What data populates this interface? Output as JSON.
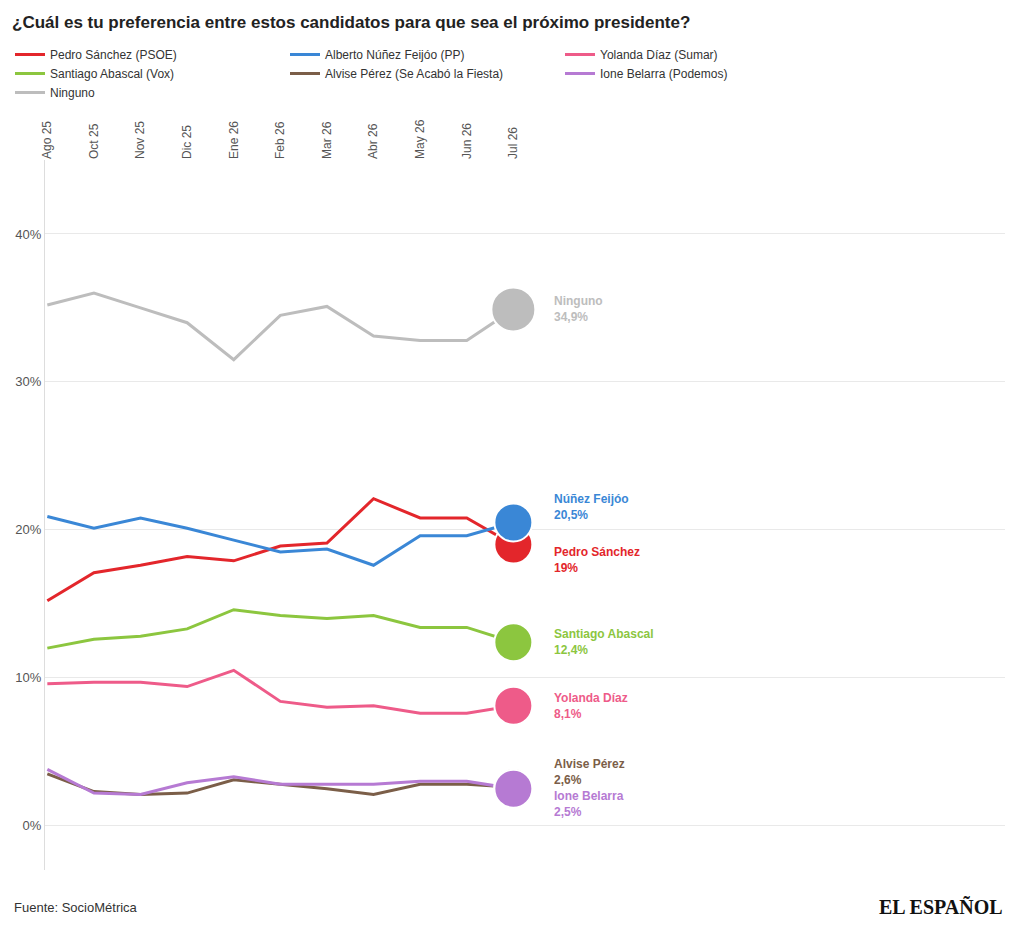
{
  "chart_data": {
    "type": "line",
    "title": "¿Cuál es tu preferencia entre estos candidatos para que sea el próximo presidente?",
    "categories": [
      "Ago 25",
      "Oct 25",
      "Nov 25",
      "Dic 25",
      "Ene 26",
      "Feb 26",
      "Mar 26",
      "Abr 26",
      "May 26",
      "Jun 26",
      "Jul 26"
    ],
    "series": [
      {
        "name": "Pedro Sánchez (PSOE)",
        "color": "#e3262b",
        "end_label": "Pedro Sánchez",
        "values": [
          15.2,
          17.1,
          17.6,
          18.2,
          17.9,
          18.9,
          19.1,
          22.1,
          20.8,
          20.8,
          19.0
        ],
        "value_labels": [
          null,
          null,
          null,
          null,
          null,
          null,
          null,
          null,
          null,
          null,
          "19%"
        ]
      },
      {
        "name": "Alberto Núñez Feijóo (PP)",
        "color": "#3a87d6",
        "end_label": "Núñez Feijóo",
        "values": [
          20.9,
          20.1,
          20.8,
          20.1,
          19.3,
          18.5,
          18.7,
          17.6,
          19.6,
          19.6,
          20.5
        ],
        "value_labels": [
          null,
          null,
          null,
          null,
          null,
          null,
          null,
          null,
          null,
          null,
          "20,5%"
        ]
      },
      {
        "name": "Yolanda Díaz (Sumar)",
        "color": "#ee5b89",
        "end_label": "Yolanda Díaz",
        "values": [
          9.6,
          9.7,
          9.7,
          9.4,
          10.5,
          8.4,
          8.0,
          8.1,
          7.6,
          7.6,
          8.1
        ],
        "value_labels": [
          null,
          null,
          null,
          null,
          null,
          null,
          null,
          null,
          null,
          null,
          "8,1%"
        ]
      },
      {
        "name": "Santiago Abascal (Vox)",
        "color": "#8cc63f",
        "end_label": "Santiago Abascal",
        "values": [
          12.0,
          12.6,
          12.8,
          13.3,
          14.6,
          14.2,
          14.0,
          14.2,
          13.4,
          13.4,
          12.4
        ],
        "value_labels": [
          null,
          null,
          null,
          null,
          null,
          null,
          null,
          null,
          null,
          null,
          "12,4%"
        ]
      },
      {
        "name": "Alvise Pérez (Se Acabó la Fiesta)",
        "color": "#7b5e48",
        "end_label": "Alvise Pérez",
        "values": [
          3.5,
          2.3,
          2.1,
          2.2,
          3.1,
          2.8,
          2.5,
          2.1,
          2.8,
          2.8,
          2.6
        ],
        "value_labels": [
          null,
          null,
          null,
          null,
          null,
          null,
          null,
          null,
          null,
          null,
          "2,6%"
        ]
      },
      {
        "name": "Ione Belarra (Podemos)",
        "color": "#b67ad3",
        "end_label": "Ione Belarra",
        "values": [
          3.8,
          2.2,
          2.1,
          2.9,
          3.3,
          2.8,
          2.8,
          2.8,
          3.0,
          3.0,
          2.5
        ],
        "value_labels": [
          null,
          null,
          null,
          null,
          null,
          null,
          null,
          null,
          null,
          null,
          "2,5%"
        ]
      },
      {
        "name": "Ninguno",
        "color": "#bdbdbd",
        "end_label": "Ninguno",
        "values": [
          35.2,
          36.0,
          35.0,
          34.0,
          31.5,
          34.5,
          35.1,
          33.1,
          32.8,
          32.8,
          34.9
        ],
        "value_labels": [
          null,
          null,
          null,
          null,
          null,
          null,
          null,
          null,
          null,
          null,
          "34,9%"
        ]
      }
    ],
    "ylim": [
      -3,
      45
    ],
    "yticks": [
      {
        "value": 0,
        "label": "0%"
      },
      {
        "value": 10,
        "label": "10%"
      },
      {
        "value": 20,
        "label": "20%"
      },
      {
        "value": 30,
        "label": "30%"
      },
      {
        "value": 40,
        "label": "40%"
      }
    ],
    "grid": true,
    "legend": "top",
    "source": "Fuente: SocioMétrica",
    "brand": "EL ESPAÑOL"
  }
}
